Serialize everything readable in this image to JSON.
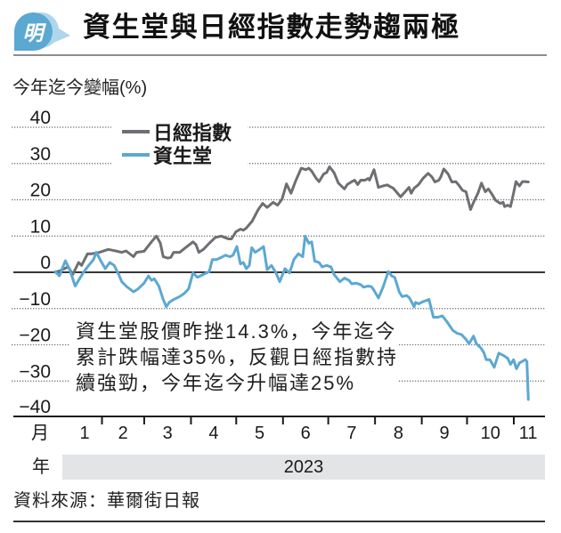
{
  "header": {
    "logo_text": "明"
  },
  "chart_data": {
    "type": "line",
    "title": "資生堂與日經指數走勢趨兩極",
    "ylabel": "今年迄今變幅(%)",
    "xlabel_month": "月",
    "xlabel_year": "年",
    "year_label": "2023",
    "ylim": [
      -40,
      40
    ],
    "yticks": [
      40,
      30,
      20,
      10,
      0,
      -10,
      -20,
      -30,
      -40
    ],
    "ytick_labels": [
      "40",
      "30",
      "20",
      "10",
      "0",
      "−10",
      "−20",
      "−30",
      "−40"
    ],
    "xlim": [
      0,
      304
    ],
    "month_labels": [
      "1",
      "2",
      "3",
      "4",
      "5",
      "6",
      "7",
      "8",
      "9",
      "10",
      "11"
    ],
    "month_label_days": [
      19.5,
      45,
      74.5,
      105,
      135.5,
      166,
      196.5,
      227.5,
      258,
      288.5,
      313.5
    ],
    "month_boundaries": [
      31,
      59,
      90,
      120,
      151,
      181,
      212,
      243,
      273,
      304
    ],
    "grid": true,
    "legend": {
      "position": "top-left"
    },
    "series": [
      {
        "name": "日經指數",
        "color": "#6d6f72",
        "points": [
          [
            0,
            0
          ],
          [
            3.5,
            0.5
          ],
          [
            8.7,
            1.5
          ],
          [
            11.6,
            -0.6
          ],
          [
            15.5,
            2.7
          ],
          [
            17.5,
            1.9
          ],
          [
            21.4,
            5.1
          ],
          [
            24.4,
            5.1
          ],
          [
            29.3,
            5.5
          ],
          [
            35.2,
            6.3
          ],
          [
            40.1,
            5.9
          ],
          [
            44.1,
            5.5
          ],
          [
            47,
            5.9
          ],
          [
            51.9,
            4.3
          ],
          [
            53.9,
            5.5
          ],
          [
            58.9,
            5.8
          ],
          [
            63.8,
            8.4
          ],
          [
            67.1,
            10
          ],
          [
            69.7,
            8
          ],
          [
            71.6,
            4.3
          ],
          [
            74.6,
            3.9
          ],
          [
            76.6,
            4.1
          ],
          [
            78.5,
            5.5
          ],
          [
            82.5,
            5.5
          ],
          [
            86.4,
            6.8
          ],
          [
            91.3,
            8.4
          ],
          [
            93.3,
            7.6
          ],
          [
            95.2,
            5.5
          ],
          [
            98.2,
            6.3
          ],
          [
            102.1,
            8
          ],
          [
            106.1,
            9.6
          ],
          [
            110,
            10
          ],
          [
            114.9,
            9.2
          ],
          [
            116.9,
            9.2
          ],
          [
            119.8,
            11.2
          ],
          [
            122.8,
            11.9
          ],
          [
            124.7,
            11.6
          ],
          [
            126.7,
            12.2
          ],
          [
            130.6,
            14.1
          ],
          [
            134.6,
            17.3
          ],
          [
            137.5,
            19
          ],
          [
            140.5,
            17.9
          ],
          [
            144.5,
            19.3
          ],
          [
            147.4,
            18.5
          ],
          [
            150.4,
            20.2
          ],
          [
            153.3,
            24.4
          ],
          [
            156.3,
            21.8
          ],
          [
            159.2,
            25
          ],
          [
            163.1,
            28.7
          ],
          [
            166.1,
            28.3
          ],
          [
            168.1,
            28.7
          ],
          [
            170,
            27.9
          ],
          [
            173,
            25.9
          ],
          [
            174.9,
            25
          ],
          [
            177.9,
            27.1
          ],
          [
            179.9,
            27.5
          ],
          [
            181.8,
            29.1
          ],
          [
            184.8,
            27.5
          ],
          [
            187.7,
            24.6
          ],
          [
            191.7,
            23
          ],
          [
            193.6,
            24.2
          ],
          [
            196.6,
            25
          ],
          [
            198.5,
            25.4
          ],
          [
            200.5,
            24.2
          ],
          [
            202.5,
            25.4
          ],
          [
            205.4,
            25.4
          ],
          [
            207.4,
            25.9
          ],
          [
            208.4,
            25.4
          ],
          [
            211.3,
            28.3
          ],
          [
            214.3,
            23.4
          ],
          [
            217.2,
            23.8
          ],
          [
            220.2,
            24.1
          ],
          [
            222.1,
            23.6
          ],
          [
            224.1,
            23.2
          ],
          [
            226.1,
            22.2
          ],
          [
            229,
            20.8
          ],
          [
            232,
            22.2
          ],
          [
            234.5,
            23.4
          ],
          [
            236,
            21.8
          ],
          [
            237.9,
            23.2
          ],
          [
            240.9,
            24.2
          ],
          [
            243.8,
            25.9
          ],
          [
            247.2,
            27.3
          ],
          [
            249.7,
            26.3
          ],
          [
            251.7,
            24.9
          ],
          [
            254.3,
            25.4
          ],
          [
            255.6,
            26.3
          ],
          [
            257.6,
            28.5
          ],
          [
            260.5,
            27.1
          ],
          [
            262.9,
            24.9
          ],
          [
            265.5,
            25
          ],
          [
            267.4,
            24.1
          ],
          [
            270,
            22.6
          ],
          [
            272.3,
            22.2
          ],
          [
            275.3,
            17.3
          ],
          [
            277.3,
            19.3
          ],
          [
            280.2,
            21.8
          ],
          [
            282.6,
            24.6
          ],
          [
            285.1,
            22.2
          ],
          [
            287.1,
            23
          ],
          [
            289.1,
            21.8
          ],
          [
            292,
            19.8
          ],
          [
            295,
            19
          ],
          [
            296.9,
            19.3
          ],
          [
            297.9,
            18.1
          ],
          [
            299.9,
            18.5
          ],
          [
            301.8,
            18.1
          ],
          [
            303.8,
            21.8
          ],
          [
            305.4,
            25
          ],
          [
            307.7,
            23.8
          ],
          [
            309.7,
            25
          ],
          [
            311.7,
            25
          ],
          [
            313.6,
            24.9
          ]
        ]
      },
      {
        "name": "資生堂",
        "color": "#5ba8d2",
        "points": [
          [
            0,
            0.2
          ],
          [
            2.8,
            -1
          ],
          [
            6.7,
            3.2
          ],
          [
            9.6,
            0.7
          ],
          [
            13.2,
            -3.8
          ],
          [
            15.5,
            -2.2
          ],
          [
            18.5,
            -0.2
          ],
          [
            21.4,
            1.5
          ],
          [
            25.4,
            3.5
          ],
          [
            27.3,
            5.5
          ],
          [
            30.3,
            3.1
          ],
          [
            33.2,
            1
          ],
          [
            36.2,
            2.7
          ],
          [
            39.1,
            1.9
          ],
          [
            42.1,
            -0.6
          ],
          [
            44.1,
            -2.6
          ],
          [
            47,
            -3.8
          ],
          [
            51.9,
            -5.4
          ],
          [
            54.9,
            -4.6
          ],
          [
            58.9,
            -3
          ],
          [
            61.8,
            -1
          ],
          [
            63.8,
            -2.2
          ],
          [
            65.7,
            -1.8
          ],
          [
            68.7,
            -3.8
          ],
          [
            71.6,
            -7.5
          ],
          [
            73.6,
            -9.5
          ],
          [
            75.6,
            -8.3
          ],
          [
            78.5,
            -7.5
          ],
          [
            82.5,
            -6.7
          ],
          [
            85.4,
            -5.9
          ],
          [
            88.4,
            -4.6
          ],
          [
            91.3,
            -0.2
          ],
          [
            94.3,
            -1.4
          ],
          [
            98.2,
            -0.6
          ],
          [
            102.1,
            0.2
          ],
          [
            104.1,
            3.5
          ],
          [
            107,
            3.5
          ],
          [
            109,
            3.9
          ],
          [
            112.9,
            4.7
          ],
          [
            115.9,
            4.3
          ],
          [
            117.9,
            4.7
          ],
          [
            120.4,
            7.1
          ],
          [
            122.8,
            2.3
          ],
          [
            124.7,
            2.7
          ],
          [
            126.7,
            1
          ],
          [
            128.7,
            1.9
          ],
          [
            130.3,
            6.8
          ],
          [
            132.6,
            5.5
          ],
          [
            135.6,
            6.3
          ],
          [
            138.1,
            7.1
          ],
          [
            140.5,
            0.7
          ],
          [
            143.4,
            1.9
          ],
          [
            146.4,
            -0.2
          ],
          [
            148.8,
            -2.6
          ],
          [
            152.3,
            1
          ],
          [
            155.3,
            -0.2
          ],
          [
            158.2,
            3.5
          ],
          [
            161.2,
            5.1
          ],
          [
            164.1,
            4.3
          ],
          [
            165.7,
            10
          ],
          [
            168.1,
            8
          ],
          [
            170,
            8.4
          ],
          [
            172,
            3.1
          ],
          [
            174.9,
            2.7
          ],
          [
            176.9,
            1.5
          ],
          [
            179.9,
            1.9
          ],
          [
            182.8,
            1.5
          ],
          [
            184.8,
            -0.6
          ],
          [
            188.7,
            -2.6
          ],
          [
            191.7,
            -1.6
          ],
          [
            194.6,
            -2.2
          ],
          [
            196.6,
            -3.2
          ],
          [
            199.5,
            -3
          ],
          [
            202.5,
            -3.4
          ],
          [
            204.4,
            -4.1
          ],
          [
            207.4,
            -3.8
          ],
          [
            209.7,
            -4
          ],
          [
            211.3,
            -5
          ],
          [
            214.3,
            -7.1
          ],
          [
            217.2,
            -4.2
          ],
          [
            220.8,
            0.2
          ],
          [
            223.1,
            -1
          ],
          [
            225.1,
            -1.4
          ],
          [
            228,
            -5.4
          ],
          [
            230,
            -6.7
          ],
          [
            233,
            -6.4
          ],
          [
            234.9,
            -7.1
          ],
          [
            237.9,
            -9.5
          ],
          [
            238.9,
            -8.3
          ],
          [
            240.9,
            -8.7
          ],
          [
            243.8,
            -8.1
          ],
          [
            247.8,
            -7.5
          ],
          [
            250.7,
            -12.4
          ],
          [
            253.7,
            -12.4
          ],
          [
            256.6,
            -12
          ],
          [
            259.6,
            -13.6
          ],
          [
            263.5,
            -16
          ],
          [
            266.4,
            -16.8
          ],
          [
            269.4,
            -17.2
          ],
          [
            272.3,
            -18.5
          ],
          [
            274.3,
            -19.7
          ],
          [
            277.3,
            -17.6
          ],
          [
            279.2,
            -19.7
          ],
          [
            282.2,
            -20.9
          ],
          [
            284.1,
            -22.1
          ],
          [
            285.7,
            -24.1
          ],
          [
            288.1,
            -24.1
          ],
          [
            291,
            -26.2
          ],
          [
            294,
            -22.3
          ],
          [
            296.9,
            -22.9
          ],
          [
            299.9,
            -23.7
          ],
          [
            301.8,
            -25.4
          ],
          [
            303.8,
            -24.1
          ],
          [
            305.8,
            -26.6
          ],
          [
            307.7,
            -25
          ],
          [
            311.7,
            -24.1
          ],
          [
            312.7,
            -24.6
          ],
          [
            313.6,
            -35.1
          ]
        ]
      }
    ],
    "annotation": [
      "資生堂股價昨挫14.3%，今年迄今",
      "累計跌幅達35%，反觀日經指數持",
      "續強勁，今年迄今升幅達25%"
    ]
  },
  "footer": {
    "source": "資料來源：華爾街日報"
  }
}
